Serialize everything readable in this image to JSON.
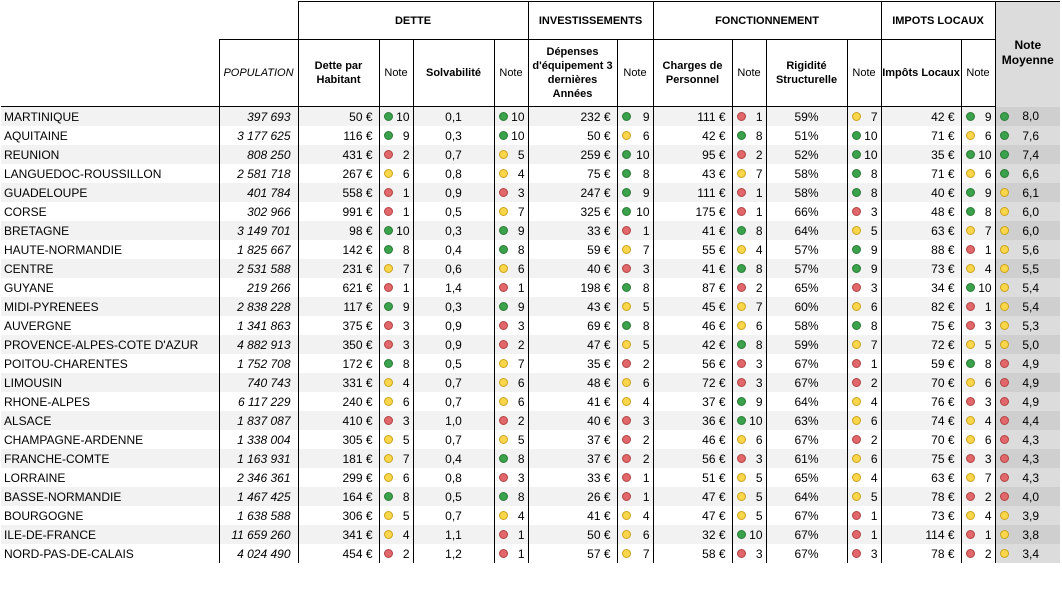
{
  "headers": {
    "groups": [
      "DETTE",
      "INVESTISSEMENTS",
      "FONCTIONNEMENT",
      "IMPOTS LOCAUX"
    ],
    "note_moyenne": "Note Moyenne",
    "population": "POPULATION",
    "dette_par_habitant": "Dette par Habitant",
    "note": "Note",
    "solvabilite": "Solvabilité",
    "depenses": "Dépenses d'équipement 3 dernières Années",
    "charges": "Charges de Personnel",
    "rigidite": "Rigidité Structurelle",
    "impots": "Impôts Locaux"
  },
  "colors": {
    "green": "#3aa24a",
    "yellow": "#fbd54a",
    "red": "#e2676a"
  },
  "rows": [
    {
      "region": "MARTINIQUE",
      "population": "397 693",
      "dette": "50 €",
      "dette_note": "10",
      "dette_c": "green",
      "solv": "0,1",
      "solv_note": "10",
      "solv_c": "green",
      "dep": "232 €",
      "dep_note": "9",
      "dep_c": "green",
      "charges": "111 €",
      "charges_note": "1",
      "charges_c": "red",
      "rig": "59%",
      "rig_note": "7",
      "rig_c": "yellow",
      "imp": "42 €",
      "imp_note": "9",
      "imp_c": "green",
      "moy": "8,0",
      "moy_c": "green"
    },
    {
      "region": "AQUITAINE",
      "population": "3 177 625",
      "dette": "116 €",
      "dette_note": "9",
      "dette_c": "green",
      "solv": "0,3",
      "solv_note": "10",
      "solv_c": "green",
      "dep": "50 €",
      "dep_note": "6",
      "dep_c": "yellow",
      "charges": "42 €",
      "charges_note": "8",
      "charges_c": "green",
      "rig": "51%",
      "rig_note": "10",
      "rig_c": "green",
      "imp": "71 €",
      "imp_note": "6",
      "imp_c": "yellow",
      "moy": "7,6",
      "moy_c": "green"
    },
    {
      "region": "REUNION",
      "population": "808 250",
      "dette": "431 €",
      "dette_note": "2",
      "dette_c": "red",
      "solv": "0,7",
      "solv_note": "5",
      "solv_c": "yellow",
      "dep": "259 €",
      "dep_note": "10",
      "dep_c": "green",
      "charges": "95 €",
      "charges_note": "2",
      "charges_c": "red",
      "rig": "52%",
      "rig_note": "10",
      "rig_c": "green",
      "imp": "35 €",
      "imp_note": "10",
      "imp_c": "green",
      "moy": "7,4",
      "moy_c": "green"
    },
    {
      "region": "LANGUEDOC-ROUSSILLON",
      "population": "2 581 718",
      "dette": "267 €",
      "dette_note": "6",
      "dette_c": "yellow",
      "solv": "0,8",
      "solv_note": "4",
      "solv_c": "yellow",
      "dep": "75 €",
      "dep_note": "8",
      "dep_c": "green",
      "charges": "43 €",
      "charges_note": "7",
      "charges_c": "yellow",
      "rig": "58%",
      "rig_note": "8",
      "rig_c": "green",
      "imp": "71 €",
      "imp_note": "6",
      "imp_c": "yellow",
      "moy": "6,6",
      "moy_c": "green"
    },
    {
      "region": "GUADELOUPE",
      "population": "401 784",
      "dette": "558 €",
      "dette_note": "1",
      "dette_c": "red",
      "solv": "0,9",
      "solv_note": "3",
      "solv_c": "red",
      "dep": "247 €",
      "dep_note": "9",
      "dep_c": "green",
      "charges": "111 €",
      "charges_note": "1",
      "charges_c": "red",
      "rig": "58%",
      "rig_note": "8",
      "rig_c": "green",
      "imp": "40 €",
      "imp_note": "9",
      "imp_c": "green",
      "moy": "6,1",
      "moy_c": "yellow"
    },
    {
      "region": "CORSE",
      "population": "302 966",
      "dette": "991 €",
      "dette_note": "1",
      "dette_c": "red",
      "solv": "0,5",
      "solv_note": "7",
      "solv_c": "yellow",
      "dep": "325 €",
      "dep_note": "10",
      "dep_c": "green",
      "charges": "175 €",
      "charges_note": "1",
      "charges_c": "red",
      "rig": "66%",
      "rig_note": "3",
      "rig_c": "red",
      "imp": "48 €",
      "imp_note": "8",
      "imp_c": "green",
      "moy": "6,0",
      "moy_c": "yellow"
    },
    {
      "region": "BRETAGNE",
      "population": "3 149 701",
      "dette": "98 €",
      "dette_note": "10",
      "dette_c": "green",
      "solv": "0,3",
      "solv_note": "9",
      "solv_c": "green",
      "dep": "33 €",
      "dep_note": "1",
      "dep_c": "red",
      "charges": "41 €",
      "charges_note": "8",
      "charges_c": "green",
      "rig": "64%",
      "rig_note": "5",
      "rig_c": "yellow",
      "imp": "63 €",
      "imp_note": "7",
      "imp_c": "yellow",
      "moy": "6,0",
      "moy_c": "yellow"
    },
    {
      "region": "HAUTE-NORMANDIE",
      "population": "1 825 667",
      "dette": "142 €",
      "dette_note": "8",
      "dette_c": "green",
      "solv": "0,4",
      "solv_note": "8",
      "solv_c": "green",
      "dep": "59 €",
      "dep_note": "7",
      "dep_c": "yellow",
      "charges": "55 €",
      "charges_note": "4",
      "charges_c": "yellow",
      "rig": "57%",
      "rig_note": "9",
      "rig_c": "green",
      "imp": "88 €",
      "imp_note": "1",
      "imp_c": "red",
      "moy": "5,6",
      "moy_c": "yellow"
    },
    {
      "region": "CENTRE",
      "population": "2 531 588",
      "dette": "231 €",
      "dette_note": "7",
      "dette_c": "yellow",
      "solv": "0,6",
      "solv_note": "6",
      "solv_c": "yellow",
      "dep": "40 €",
      "dep_note": "3",
      "dep_c": "red",
      "charges": "41 €",
      "charges_note": "8",
      "charges_c": "green",
      "rig": "57%",
      "rig_note": "9",
      "rig_c": "green",
      "imp": "73 €",
      "imp_note": "4",
      "imp_c": "yellow",
      "moy": "5,5",
      "moy_c": "yellow"
    },
    {
      "region": "GUYANE",
      "population": "219 266",
      "dette": "621 €",
      "dette_note": "1",
      "dette_c": "red",
      "solv": "1,4",
      "solv_note": "1",
      "solv_c": "red",
      "dep": "198 €",
      "dep_note": "8",
      "dep_c": "green",
      "charges": "87 €",
      "charges_note": "2",
      "charges_c": "red",
      "rig": "65%",
      "rig_note": "3",
      "rig_c": "red",
      "imp": "34 €",
      "imp_note": "10",
      "imp_c": "green",
      "moy": "5,4",
      "moy_c": "yellow"
    },
    {
      "region": "MIDI-PYRENEES",
      "population": "2 838 228",
      "dette": "117 €",
      "dette_note": "9",
      "dette_c": "green",
      "solv": "0,3",
      "solv_note": "9",
      "solv_c": "green",
      "dep": "43 €",
      "dep_note": "5",
      "dep_c": "yellow",
      "charges": "45 €",
      "charges_note": "7",
      "charges_c": "yellow",
      "rig": "60%",
      "rig_note": "6",
      "rig_c": "yellow",
      "imp": "82 €",
      "imp_note": "1",
      "imp_c": "red",
      "moy": "5,4",
      "moy_c": "yellow"
    },
    {
      "region": "AUVERGNE",
      "population": "1 341 863",
      "dette": "375 €",
      "dette_note": "3",
      "dette_c": "red",
      "solv": "0,9",
      "solv_note": "3",
      "solv_c": "red",
      "dep": "69 €",
      "dep_note": "8",
      "dep_c": "green",
      "charges": "46 €",
      "charges_note": "6",
      "charges_c": "yellow",
      "rig": "58%",
      "rig_note": "8",
      "rig_c": "green",
      "imp": "75 €",
      "imp_note": "3",
      "imp_c": "red",
      "moy": "5,3",
      "moy_c": "yellow"
    },
    {
      "region": "PROVENCE-ALPES-COTE D'AZUR",
      "population": "4 882 913",
      "dette": "350 €",
      "dette_note": "3",
      "dette_c": "red",
      "solv": "0,9",
      "solv_note": "2",
      "solv_c": "red",
      "dep": "47 €",
      "dep_note": "5",
      "dep_c": "yellow",
      "charges": "42 €",
      "charges_note": "8",
      "charges_c": "green",
      "rig": "59%",
      "rig_note": "7",
      "rig_c": "yellow",
      "imp": "72 €",
      "imp_note": "5",
      "imp_c": "yellow",
      "moy": "5,0",
      "moy_c": "yellow"
    },
    {
      "region": "POITOU-CHARENTES",
      "population": "1 752 708",
      "dette": "172 €",
      "dette_note": "8",
      "dette_c": "green",
      "solv": "0,5",
      "solv_note": "7",
      "solv_c": "yellow",
      "dep": "35 €",
      "dep_note": "2",
      "dep_c": "red",
      "charges": "56 €",
      "charges_note": "3",
      "charges_c": "red",
      "rig": "67%",
      "rig_note": "1",
      "rig_c": "red",
      "imp": "59 €",
      "imp_note": "8",
      "imp_c": "green",
      "moy": "4,9",
      "moy_c": "red"
    },
    {
      "region": "LIMOUSIN",
      "population": "740 743",
      "dette": "331 €",
      "dette_note": "4",
      "dette_c": "yellow",
      "solv": "0,7",
      "solv_note": "6",
      "solv_c": "yellow",
      "dep": "48 €",
      "dep_note": "6",
      "dep_c": "yellow",
      "charges": "72 €",
      "charges_note": "3",
      "charges_c": "red",
      "rig": "67%",
      "rig_note": "2",
      "rig_c": "red",
      "imp": "70 €",
      "imp_note": "6",
      "imp_c": "yellow",
      "moy": "4,9",
      "moy_c": "red"
    },
    {
      "region": "RHONE-ALPES",
      "population": "6 117 229",
      "dette": "240 €",
      "dette_note": "6",
      "dette_c": "yellow",
      "solv": "0,7",
      "solv_note": "6",
      "solv_c": "yellow",
      "dep": "41 €",
      "dep_note": "4",
      "dep_c": "yellow",
      "charges": "37 €",
      "charges_note": "9",
      "charges_c": "green",
      "rig": "64%",
      "rig_note": "4",
      "rig_c": "yellow",
      "imp": "76 €",
      "imp_note": "3",
      "imp_c": "red",
      "moy": "4,9",
      "moy_c": "red"
    },
    {
      "region": "ALSACE",
      "population": "1 837 087",
      "dette": "410 €",
      "dette_note": "3",
      "dette_c": "red",
      "solv": "1,0",
      "solv_note": "2",
      "solv_c": "red",
      "dep": "40 €",
      "dep_note": "3",
      "dep_c": "red",
      "charges": "36 €",
      "charges_note": "10",
      "charges_c": "green",
      "rig": "63%",
      "rig_note": "6",
      "rig_c": "yellow",
      "imp": "74 €",
      "imp_note": "4",
      "imp_c": "yellow",
      "moy": "4,4",
      "moy_c": "red"
    },
    {
      "region": "CHAMPAGNE-ARDENNE",
      "population": "1 338 004",
      "dette": "305 €",
      "dette_note": "5",
      "dette_c": "yellow",
      "solv": "0,7",
      "solv_note": "5",
      "solv_c": "yellow",
      "dep": "37 €",
      "dep_note": "2",
      "dep_c": "red",
      "charges": "46 €",
      "charges_note": "6",
      "charges_c": "yellow",
      "rig": "67%",
      "rig_note": "2",
      "rig_c": "red",
      "imp": "70 €",
      "imp_note": "6",
      "imp_c": "yellow",
      "moy": "4,3",
      "moy_c": "red"
    },
    {
      "region": "FRANCHE-COMTE",
      "population": "1 163 931",
      "dette": "181 €",
      "dette_note": "7",
      "dette_c": "yellow",
      "solv": "0,4",
      "solv_note": "8",
      "solv_c": "green",
      "dep": "37 €",
      "dep_note": "2",
      "dep_c": "red",
      "charges": "56 €",
      "charges_note": "3",
      "charges_c": "red",
      "rig": "61%",
      "rig_note": "6",
      "rig_c": "yellow",
      "imp": "75 €",
      "imp_note": "3",
      "imp_c": "red",
      "moy": "4,3",
      "moy_c": "red"
    },
    {
      "region": "LORRAINE",
      "population": "2 346 361",
      "dette": "299 €",
      "dette_note": "6",
      "dette_c": "yellow",
      "solv": "0,8",
      "solv_note": "3",
      "solv_c": "red",
      "dep": "33 €",
      "dep_note": "1",
      "dep_c": "red",
      "charges": "51 €",
      "charges_note": "5",
      "charges_c": "yellow",
      "rig": "65%",
      "rig_note": "4",
      "rig_c": "yellow",
      "imp": "63 €",
      "imp_note": "7",
      "imp_c": "yellow",
      "moy": "4,3",
      "moy_c": "red"
    },
    {
      "region": "BASSE-NORMANDIE",
      "population": "1 467 425",
      "dette": "164 €",
      "dette_note": "8",
      "dette_c": "green",
      "solv": "0,5",
      "solv_note": "8",
      "solv_c": "green",
      "dep": "26 €",
      "dep_note": "1",
      "dep_c": "red",
      "charges": "47 €",
      "charges_note": "5",
      "charges_c": "yellow",
      "rig": "64%",
      "rig_note": "5",
      "rig_c": "yellow",
      "imp": "78 €",
      "imp_note": "2",
      "imp_c": "red",
      "moy": "4,0",
      "moy_c": "red"
    },
    {
      "region": "BOURGOGNE",
      "population": "1 638 588",
      "dette": "306 €",
      "dette_note": "5",
      "dette_c": "yellow",
      "solv": "0,7",
      "solv_note": "4",
      "solv_c": "yellow",
      "dep": "41 €",
      "dep_note": "4",
      "dep_c": "yellow",
      "charges": "47 €",
      "charges_note": "5",
      "charges_c": "yellow",
      "rig": "67%",
      "rig_note": "1",
      "rig_c": "red",
      "imp": "73 €",
      "imp_note": "4",
      "imp_c": "yellow",
      "moy": "3,9",
      "moy_c": "yellow"
    },
    {
      "region": "ILE-DE-FRANCE",
      "population": "11 659 260",
      "dette": "341 €",
      "dette_note": "4",
      "dette_c": "yellow",
      "solv": "1,1",
      "solv_note": "1",
      "solv_c": "red",
      "dep": "50 €",
      "dep_note": "6",
      "dep_c": "yellow",
      "charges": "32 €",
      "charges_note": "10",
      "charges_c": "green",
      "rig": "67%",
      "rig_note": "1",
      "rig_c": "red",
      "imp": "114 €",
      "imp_note": "1",
      "imp_c": "red",
      "moy": "3,8",
      "moy_c": "yellow"
    },
    {
      "region": "NORD-PAS-DE-CALAIS",
      "population": "4 024 490",
      "dette": "454 €",
      "dette_note": "2",
      "dette_c": "red",
      "solv": "1,2",
      "solv_note": "1",
      "solv_c": "red",
      "dep": "57 €",
      "dep_note": "7",
      "dep_c": "yellow",
      "charges": "58 €",
      "charges_note": "3",
      "charges_c": "red",
      "rig": "67%",
      "rig_note": "3",
      "rig_c": "red",
      "imp": "78 €",
      "imp_note": "2",
      "imp_c": "red",
      "moy": "3,4",
      "moy_c": "yellow"
    }
  ]
}
